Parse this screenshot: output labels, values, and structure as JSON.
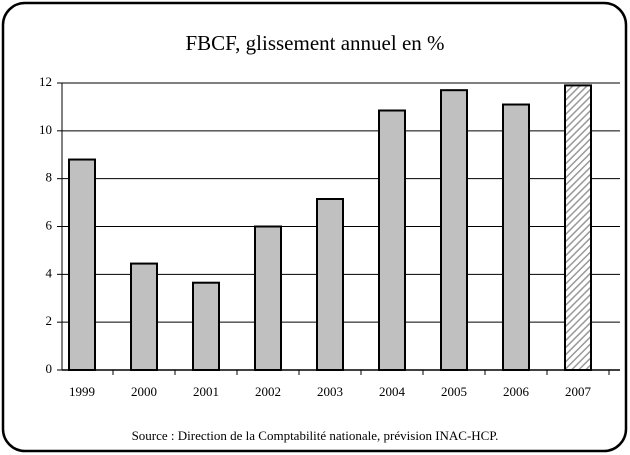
{
  "chart_data": {
    "type": "bar",
    "title": "FBCF, glissement annuel en %",
    "source": "Source : Direction de la Comptabilité nationale, prévision INAC-HCP.",
    "categories": [
      "1999",
      "2000",
      "2001",
      "2002",
      "2003",
      "2004",
      "2005",
      "2006",
      "2007"
    ],
    "values": [
      8.8,
      4.45,
      3.65,
      6.0,
      7.15,
      10.85,
      11.7,
      11.1,
      11.9
    ],
    "hatched": [
      false,
      false,
      false,
      false,
      false,
      false,
      false,
      false,
      true
    ],
    "color": "#c0c0c0",
    "ylim": [
      0,
      12
    ],
    "yticks": [
      0,
      2,
      4,
      6,
      8,
      10,
      12
    ],
    "grid": true
  }
}
